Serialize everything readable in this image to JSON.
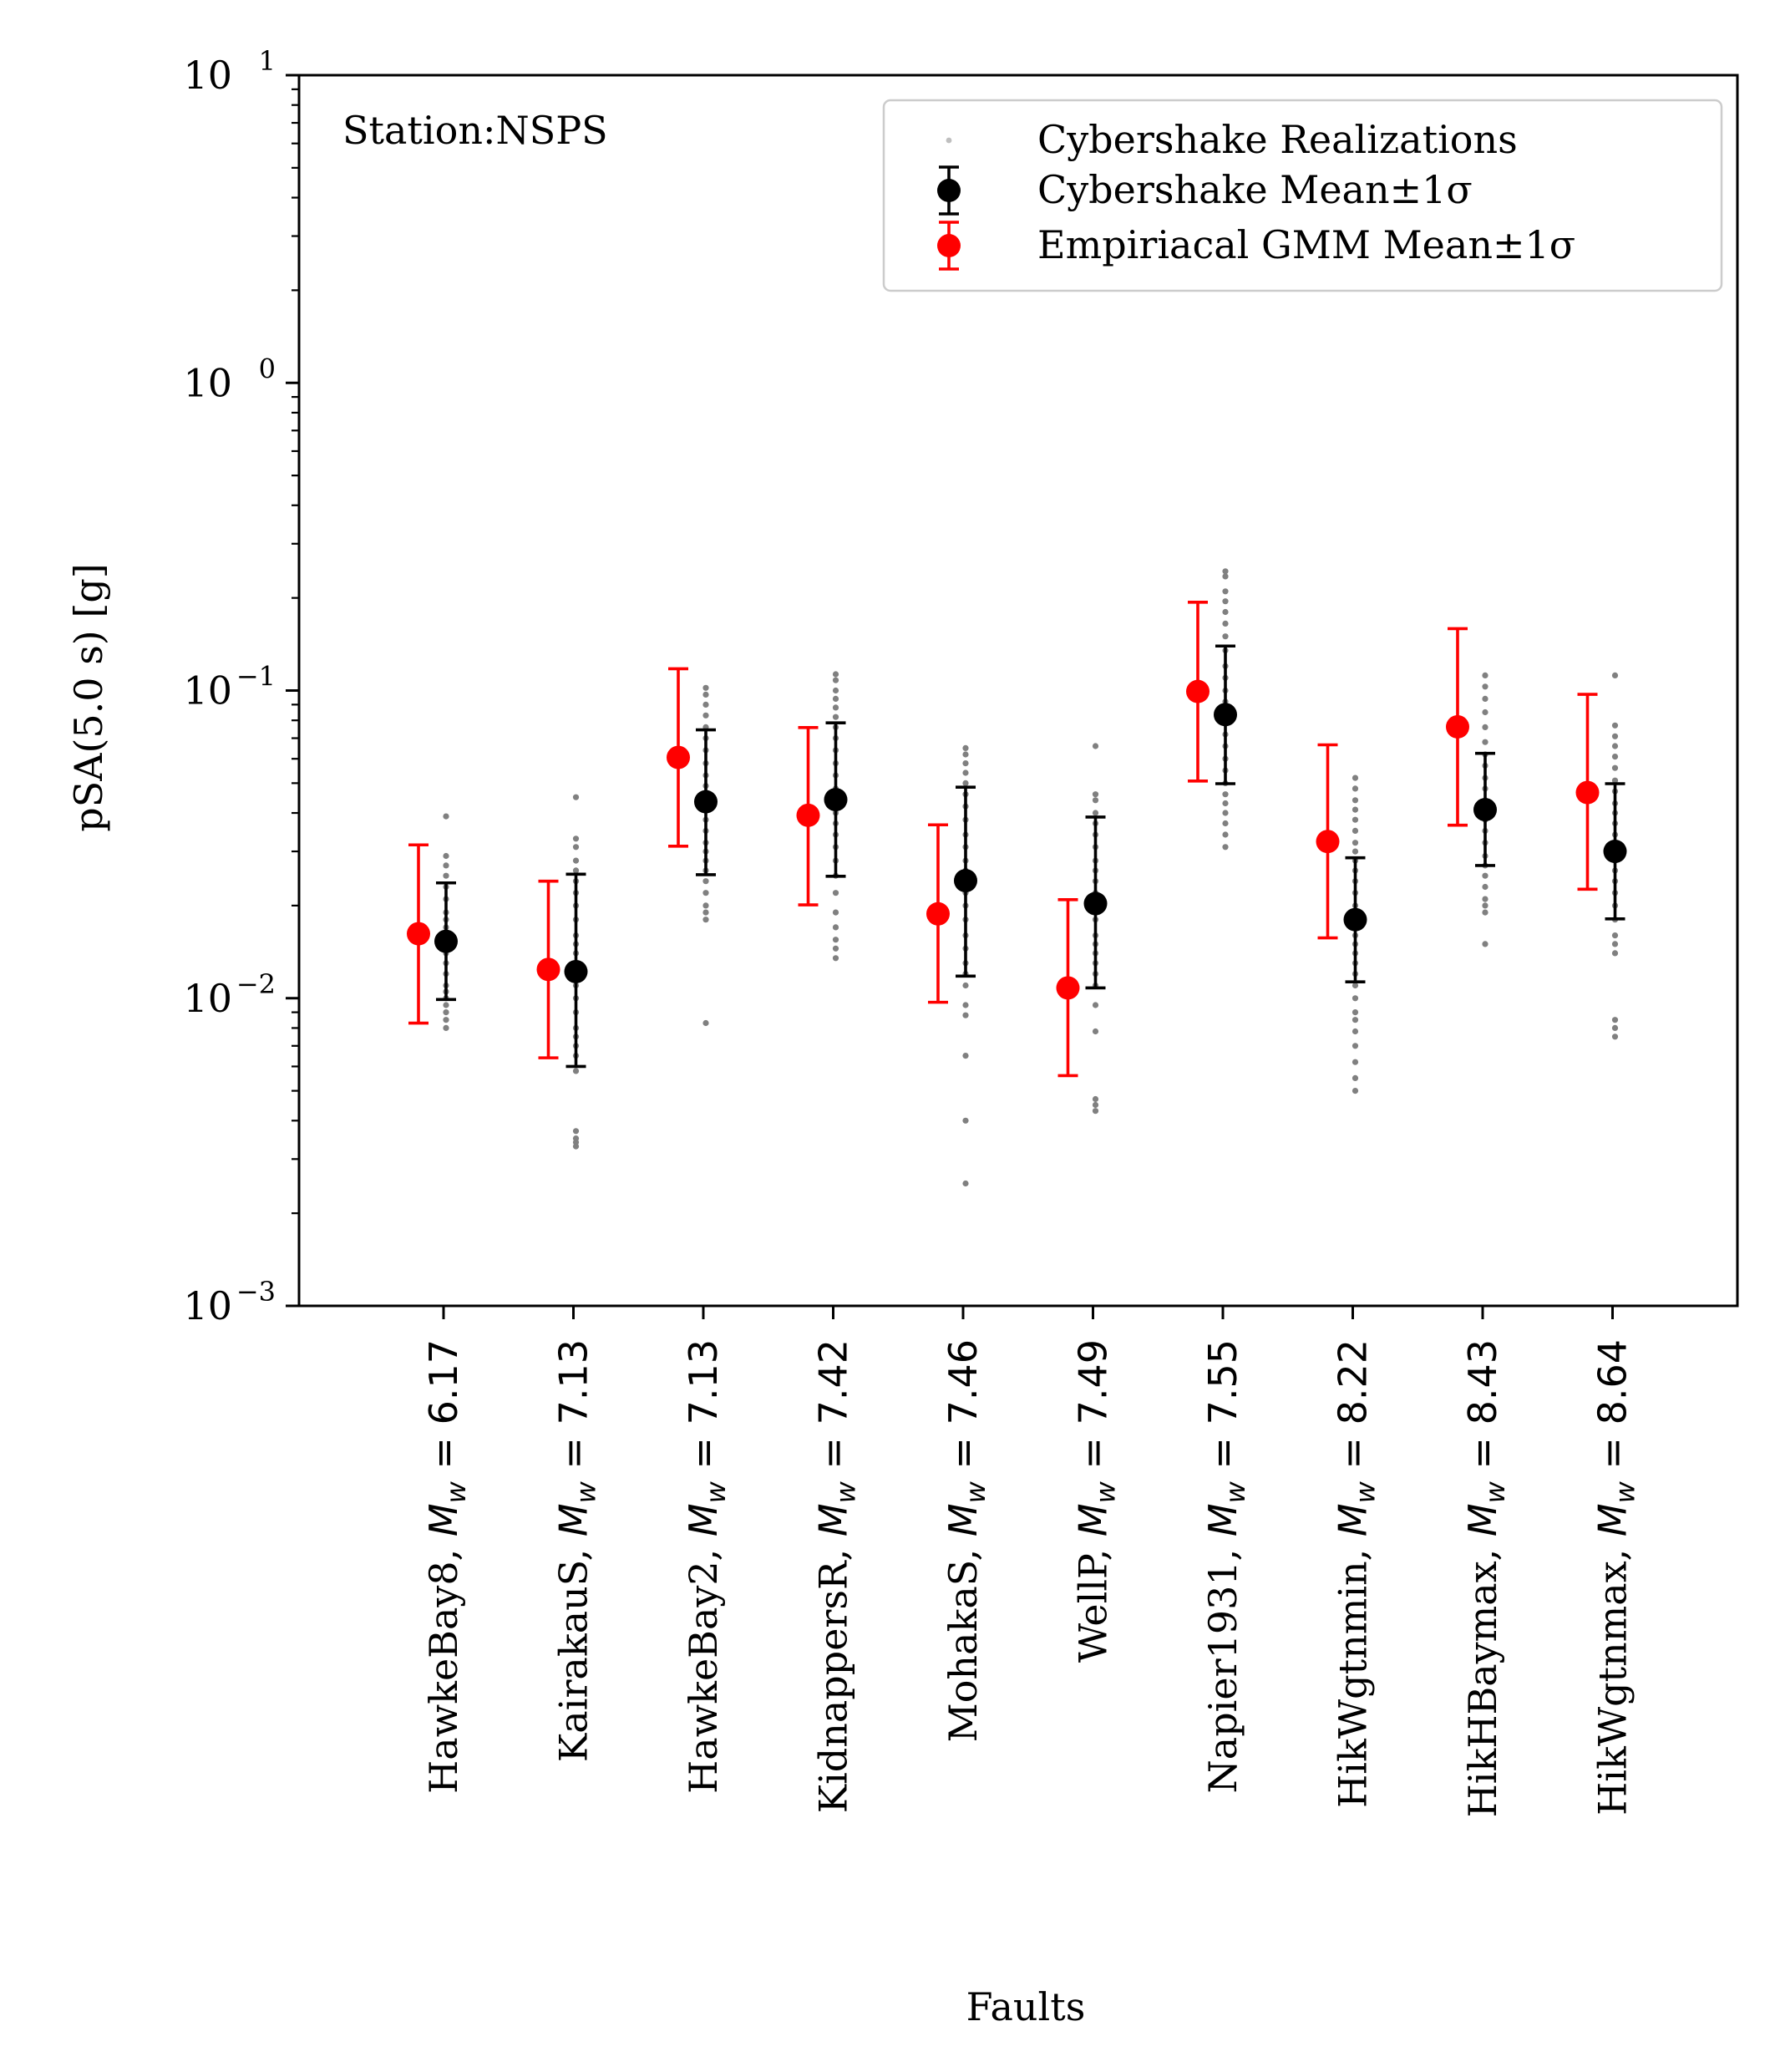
{
  "chart_data": {
    "type": "scatter",
    "yscale": "log",
    "ylim": [
      0.001,
      10
    ],
    "xlabel": "Faults",
    "ylabel": "pSA(5.0 s) [g]",
    "annotation": "Station:NSPS",
    "legend_position": "upper right",
    "colors": {
      "realizations": "#808080",
      "cybershake": "#000000",
      "empirical": "#ff0000"
    },
    "yticks": [
      {
        "value": 10,
        "base": "10",
        "exp": "1"
      },
      {
        "value": 1,
        "base": "10",
        "exp": "0"
      },
      {
        "value": 0.1,
        "base": "10",
        "exp": "−1"
      },
      {
        "value": 0.01,
        "base": "10",
        "exp": "−2"
      },
      {
        "value": 0.001,
        "base": "10",
        "exp": "−3"
      }
    ],
    "categories": [
      {
        "name": "HawkeBay8",
        "mw": "6.17"
      },
      {
        "name": "KairakauS",
        "mw": "7.13"
      },
      {
        "name": "HawkeBay2",
        "mw": "7.13"
      },
      {
        "name": "KidnappersR",
        "mw": "7.42"
      },
      {
        "name": "MohakaS",
        "mw": "7.46"
      },
      {
        "name": "WellP",
        "mw": "7.49"
      },
      {
        "name": "Napier1931",
        "mw": "7.55"
      },
      {
        "name": "HikWgtnmin",
        "mw": "8.22"
      },
      {
        "name": "HikHBaymax",
        "mw": "8.43"
      },
      {
        "name": "HikWgtnmax",
        "mw": "8.64"
      }
    ],
    "series": [
      {
        "name": "Cybershake Realizations",
        "kind": "points",
        "values": [
          [
            0.039,
            0.029,
            0.027,
            0.025,
            0.023,
            0.021,
            0.019,
            0.018,
            0.017,
            0.016,
            0.015,
            0.014,
            0.013,
            0.012,
            0.011,
            0.0105,
            0.01,
            0.0095,
            0.009,
            0.0085,
            0.008
          ],
          [
            0.045,
            0.033,
            0.031,
            0.028,
            0.026,
            0.024,
            0.022,
            0.02,
            0.018,
            0.016,
            0.015,
            0.014,
            0.013,
            0.012,
            0.011,
            0.01,
            0.009,
            0.008,
            0.0075,
            0.007,
            0.0065,
            0.0058,
            0.0037,
            0.0035,
            0.0034,
            0.0033
          ],
          [
            0.102,
            0.097,
            0.09,
            0.083,
            0.076,
            0.07,
            0.064,
            0.058,
            0.053,
            0.049,
            0.045,
            0.041,
            0.038,
            0.035,
            0.032,
            0.03,
            0.028,
            0.026,
            0.024,
            0.022,
            0.02,
            0.019,
            0.018,
            0.0083
          ],
          [
            0.113,
            0.108,
            0.1,
            0.094,
            0.088,
            0.082,
            0.076,
            0.07,
            0.064,
            0.058,
            0.053,
            0.048,
            0.043,
            0.04,
            0.037,
            0.034,
            0.031,
            0.028,
            0.025,
            0.022,
            0.019,
            0.017,
            0.0155,
            0.0145,
            0.0135
          ],
          [
            0.065,
            0.062,
            0.058,
            0.054,
            0.05,
            0.046,
            0.042,
            0.038,
            0.034,
            0.031,
            0.028,
            0.026,
            0.024,
            0.022,
            0.02,
            0.018,
            0.016,
            0.0145,
            0.013,
            0.012,
            0.011,
            0.0095,
            0.0088,
            0.0065,
            0.004,
            0.0025
          ],
          [
            0.066,
            0.046,
            0.044,
            0.04,
            0.037,
            0.034,
            0.031,
            0.028,
            0.026,
            0.024,
            0.022,
            0.02,
            0.018,
            0.016,
            0.015,
            0.014,
            0.013,
            0.012,
            0.011,
            0.0095,
            0.0078,
            0.0047,
            0.0045,
            0.0043
          ],
          [
            0.244,
            0.235,
            0.21,
            0.195,
            0.18,
            0.165,
            0.15,
            0.135,
            0.12,
            0.11,
            0.1,
            0.092,
            0.085,
            0.078,
            0.072,
            0.066,
            0.06,
            0.055,
            0.05,
            0.046,
            0.043,
            0.04,
            0.037,
            0.034,
            0.031
          ],
          [
            0.052,
            0.048,
            0.044,
            0.041,
            0.038,
            0.035,
            0.032,
            0.03,
            0.028,
            0.026,
            0.024,
            0.022,
            0.02,
            0.018,
            0.016,
            0.015,
            0.014,
            0.013,
            0.012,
            0.011,
            0.01,
            0.009,
            0.0085,
            0.0078,
            0.007,
            0.0062,
            0.0055,
            0.005
          ],
          [
            0.112,
            0.103,
            0.094,
            0.085,
            0.076,
            0.068,
            0.062,
            0.057,
            0.052,
            0.048,
            0.044,
            0.041,
            0.038,
            0.035,
            0.032,
            0.029,
            0.027,
            0.025,
            0.023,
            0.021,
            0.02,
            0.019,
            0.015
          ],
          [
            0.112,
            0.077,
            0.071,
            0.066,
            0.061,
            0.056,
            0.051,
            0.047,
            0.043,
            0.04,
            0.037,
            0.034,
            0.031,
            0.028,
            0.026,
            0.024,
            0.022,
            0.02,
            0.018,
            0.016,
            0.015,
            0.014,
            0.0085,
            0.008,
            0.0075
          ]
        ]
      },
      {
        "name": "Cybershake Mean±1σ",
        "kind": "errorbar",
        "mean": [
          0.0153,
          0.0122,
          0.0435,
          0.0442,
          0.0241,
          0.0203,
          0.0835,
          0.018,
          0.041,
          0.03
        ],
        "lower": [
          0.0099,
          0.006,
          0.0252,
          0.0249,
          0.0118,
          0.0108,
          0.0498,
          0.0113,
          0.027,
          0.0181
        ],
        "upper": [
          0.0237,
          0.0253,
          0.0745,
          0.0785,
          0.0485,
          0.0388,
          0.1395,
          0.0286,
          0.0625,
          0.0498
        ]
      },
      {
        "name": "Empiriacal GMM Mean±1σ",
        "kind": "errorbar",
        "mean": [
          0.0162,
          0.0124,
          0.0606,
          0.0393,
          0.0188,
          0.0108,
          0.0993,
          0.0323,
          0.0762,
          0.0466
        ],
        "lower": [
          0.0083,
          0.0064,
          0.0312,
          0.0201,
          0.0097,
          0.0056,
          0.0508,
          0.0157,
          0.0365,
          0.0226
        ],
        "upper": [
          0.0315,
          0.024,
          0.1177,
          0.0758,
          0.0366,
          0.0209,
          0.1936,
          0.0666,
          0.1589,
          0.0972
        ]
      }
    ]
  }
}
